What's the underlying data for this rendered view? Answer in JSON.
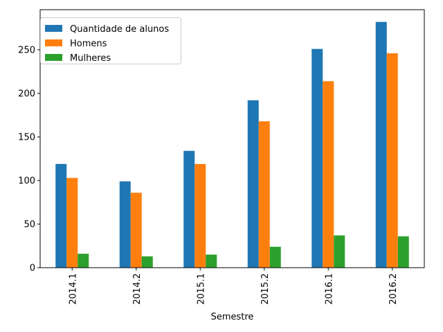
{
  "chart_data": {
    "type": "bar",
    "categories": [
      "2014.1",
      "2014.2",
      "2015.1",
      "2015.2",
      "2016.1",
      "2016.2"
    ],
    "series": [
      {
        "name": "Quantidade de alunos",
        "values": [
          119,
          99,
          134,
          192,
          251,
          282
        ],
        "color": "#1f77b4"
      },
      {
        "name": "Homens",
        "values": [
          103,
          86,
          119,
          168,
          214,
          246
        ],
        "color": "#ff7f0e"
      },
      {
        "name": "Mulheres",
        "values": [
          16,
          13,
          15,
          24,
          37,
          36
        ],
        "color": "#2ca02c"
      }
    ],
    "xlabel": "Semestre",
    "ylabel": "",
    "ylim": [
      0,
      296
    ],
    "yticks": [
      0,
      50,
      100,
      150,
      200,
      250
    ],
    "xtick_rotation": "vertical",
    "legend_position": "top-left",
    "grid": false
  }
}
